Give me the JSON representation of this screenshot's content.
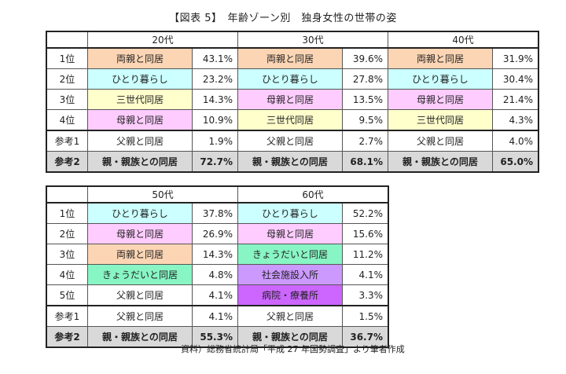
{
  "title": "【図表 5】　年齢ゾーン別　独身女性の世帯の姿",
  "colors": {
    "両親と同居": "#fcd5b4",
    "ひとり暮らし": "#ccffff",
    "三世代同居": "#ffffcc",
    "母親と同居": "#ffccff",
    "きょうだいと同居": "#88f5c4",
    "社会施設入所": "#cc99ff",
    "病院・療養所": "#cc66ff"
  },
  "tables": [
    {
      "ages": [
        "20代",
        "30代",
        "40代"
      ],
      "rows": [
        {
          "rank": "1位",
          "cells": [
            [
              "両親と同居",
              "43.1%"
            ],
            [
              "両親と同居",
              "39.6%"
            ],
            [
              "両親と同居",
              "31.9%"
            ]
          ]
        },
        {
          "rank": "2位",
          "cells": [
            [
              "ひとり暮らし",
              "23.2%"
            ],
            [
              "ひとり暮らし",
              "27.8%"
            ],
            [
              "ひとり暮らし",
              "30.4%"
            ]
          ]
        },
        {
          "rank": "3位",
          "cells": [
            [
              "三世代同居",
              "14.3%"
            ],
            [
              "母親と同居",
              "13.5%"
            ],
            [
              "母親と同居",
              "21.4%"
            ]
          ]
        },
        {
          "rank": "4位",
          "cells": [
            [
              "母親と同居",
              "10.9%"
            ],
            [
              "三世代同居",
              "9.5%"
            ],
            [
              "三世代同居",
              "4.3%"
            ]
          ]
        },
        {
          "rank": "参考1",
          "cells": [
            [
              "父親と同居",
              "1.9%"
            ],
            [
              "父親と同居",
              "2.7%"
            ],
            [
              "父親と同居",
              "4.0%"
            ]
          ]
        },
        {
          "rank": "参考2",
          "cells": [
            [
              "親・親族との同居",
              "72.7%"
            ],
            [
              "親・親族との同居",
              "68.1%"
            ],
            [
              "親・親族との同居",
              "65.0%"
            ]
          ]
        }
      ]
    },
    {
      "ages": [
        "50代",
        "60代"
      ],
      "rows": [
        {
          "rank": "1位",
          "cells": [
            [
              "ひとり暮らし",
              "37.8%"
            ],
            [
              "ひとり暮らし",
              "52.2%"
            ]
          ]
        },
        {
          "rank": "2位",
          "cells": [
            [
              "母親と同居",
              "26.9%"
            ],
            [
              "母親と同居",
              "15.6%"
            ]
          ]
        },
        {
          "rank": "3位",
          "cells": [
            [
              "両親と同居",
              "14.3%"
            ],
            [
              "きょうだいと同居",
              "11.2%"
            ]
          ]
        },
        {
          "rank": "4位",
          "cells": [
            [
              "きょうだいと同居",
              "4.8%"
            ],
            [
              "社会施設入所",
              "4.1%"
            ]
          ]
        },
        {
          "rank": "5位",
          "cells": [
            [
              "父親と同居",
              "4.1%"
            ],
            [
              "病院・療養所",
              "3.3%"
            ]
          ]
        },
        {
          "rank": "参考1",
          "cells": [
            [
              "父親と同居",
              "4.1%"
            ],
            [
              "父親と同居",
              "1.5%"
            ]
          ]
        },
        {
          "rank": "参考2",
          "cells": [
            [
              "親・親族との同居",
              "55.3%"
            ],
            [
              "親・親族との同居",
              "36.7%"
            ]
          ]
        }
      ]
    }
  ],
  "caption": "資料）総務省統計局「平成 27 年国勢調査」より筆者作成"
}
